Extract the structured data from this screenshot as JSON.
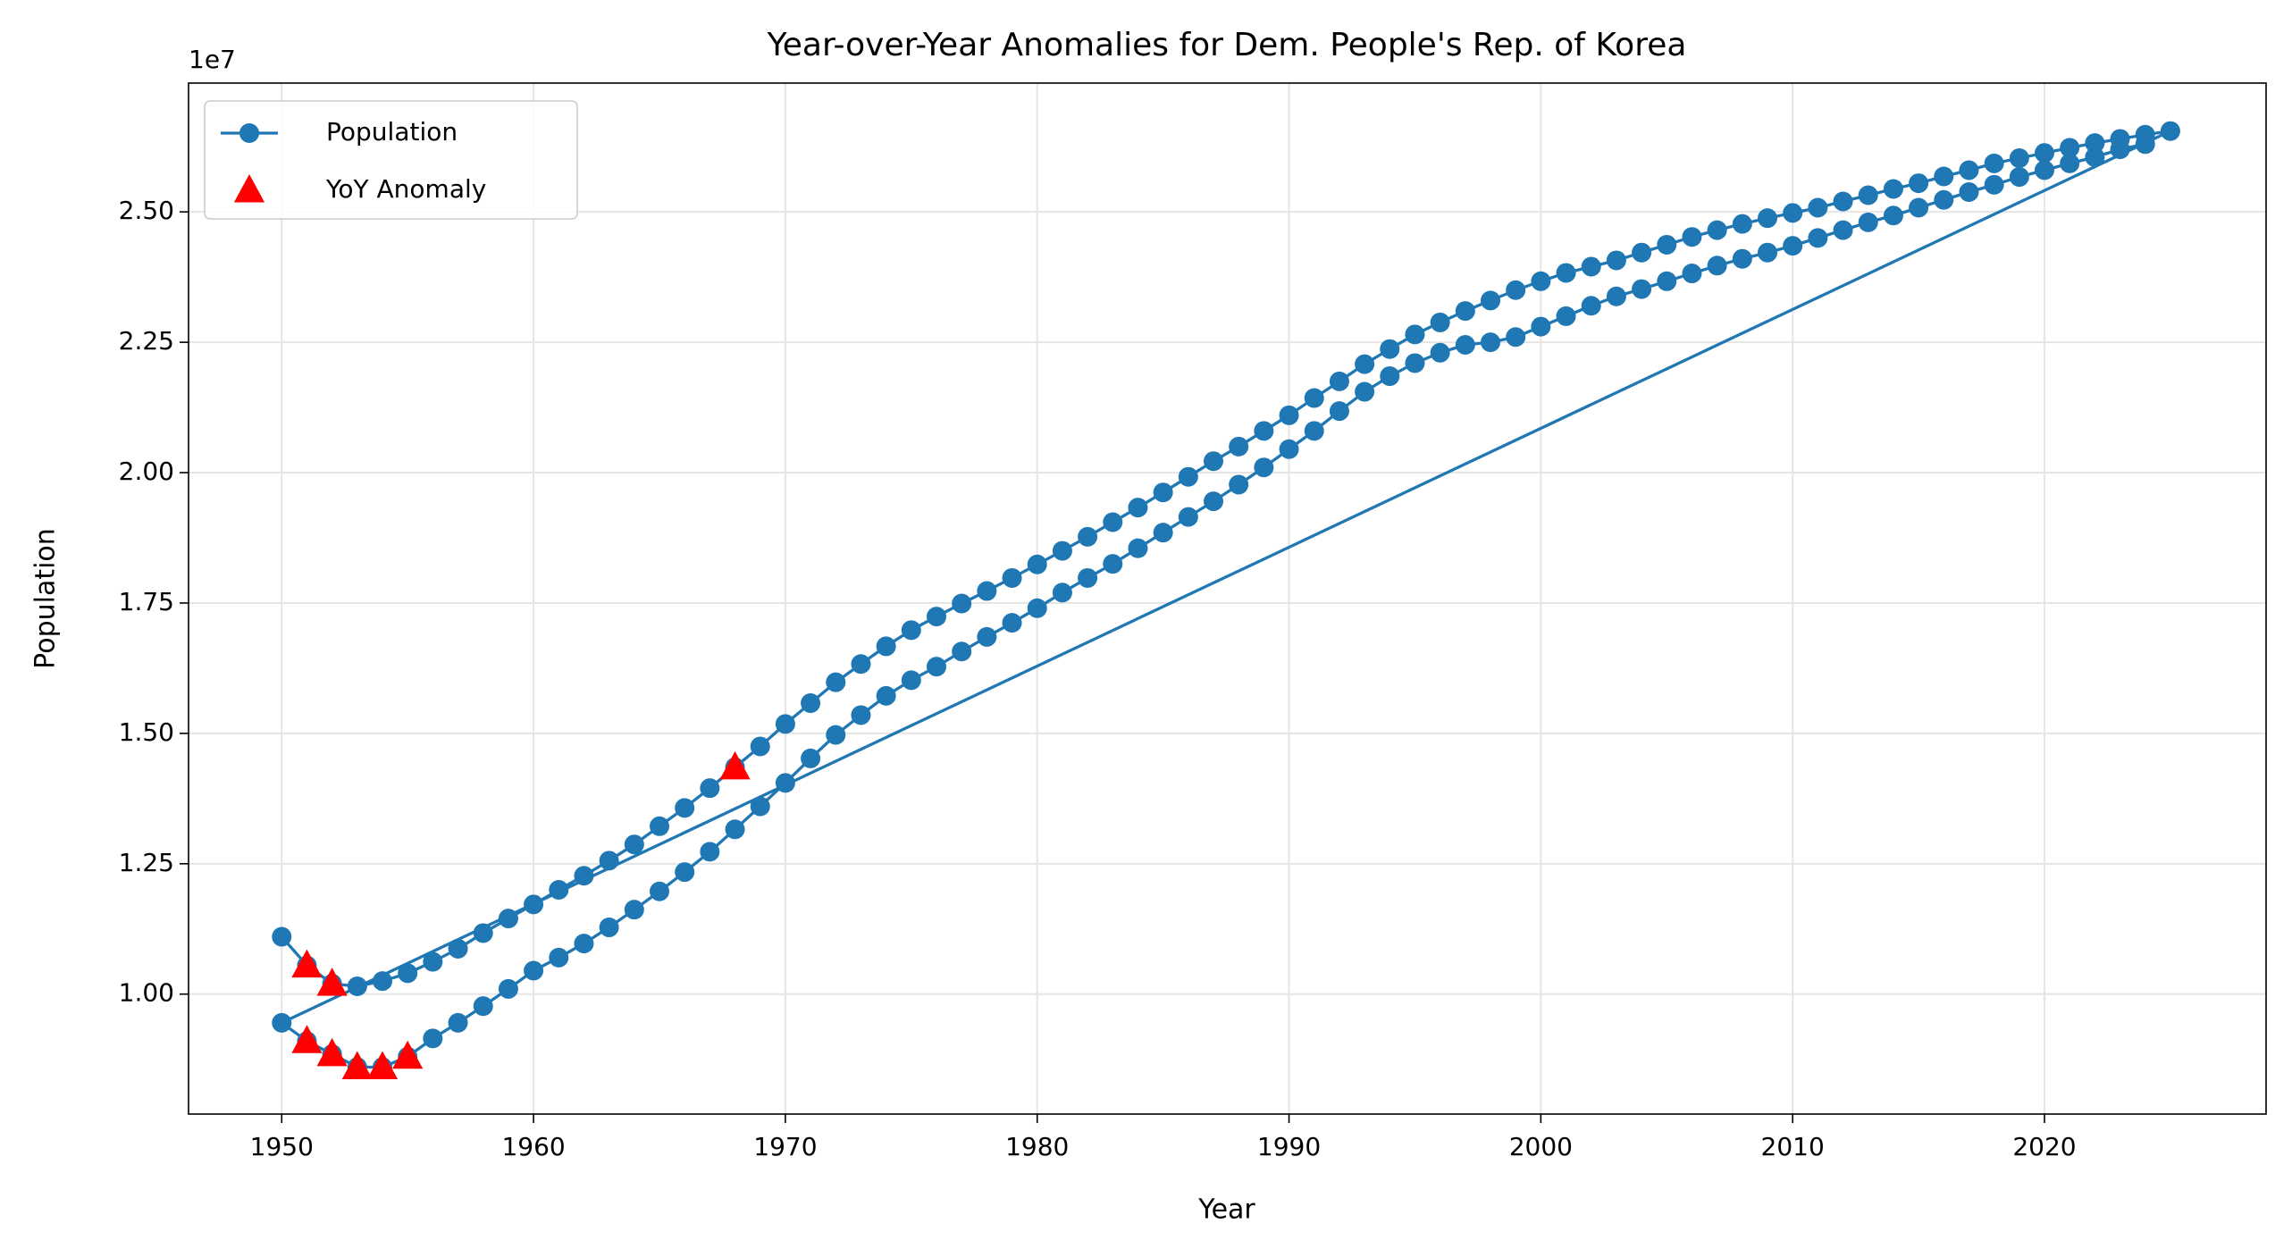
{
  "chart_data": {
    "type": "line",
    "title": "Year-over-Year Anomalies for Dem. People's Rep. of Korea",
    "x_label": "Year",
    "y_label": "Population",
    "y_offset_label": "1e7",
    "xlim": [
      1946.3,
      2028.8
    ],
    "ylim": [
      7700000,
      27470000
    ],
    "xticks": [
      1950,
      1960,
      1970,
      1980,
      1990,
      2000,
      2010,
      2020
    ],
    "yticks": [
      {
        "value": 10000000,
        "label": "1.00"
      },
      {
        "value": 12500000,
        "label": "1.25"
      },
      {
        "value": 15000000,
        "label": "1.50"
      },
      {
        "value": 17500000,
        "label": "1.75"
      },
      {
        "value": 20000000,
        "label": "2.00"
      },
      {
        "value": 22500000,
        "label": "2.25"
      },
      {
        "value": 25000000,
        "label": "2.50"
      }
    ],
    "grid": true,
    "legend": "upper left",
    "x": [
      1950,
      1951,
      1952,
      1953,
      1954,
      1955,
      1956,
      1957,
      1958,
      1959,
      1960,
      1961,
      1962,
      1963,
      1964,
      1965,
      1966,
      1967,
      1968,
      1969,
      1970,
      1971,
      1972,
      1973,
      1974,
      1975,
      1976,
      1977,
      1978,
      1979,
      1980,
      1981,
      1982,
      1983,
      1984,
      1985,
      1986,
      1987,
      1988,
      1989,
      1990,
      1991,
      1992,
      1993,
      1994,
      1995,
      1996,
      1997,
      1998,
      1999,
      2000,
      2001,
      2002,
      2003,
      2004,
      2005,
      2006,
      2007,
      2008,
      2009,
      2010,
      2011,
      2012,
      2013,
      2014,
      2015,
      2016,
      2017,
      2018,
      2019,
      2020,
      2021,
      2022,
      2023,
      2024,
      2025,
      1950,
      1951,
      1952,
      1953,
      1954,
      1955,
      1956,
      1957,
      1958,
      1959,
      1960,
      1961,
      1962,
      1963,
      1964,
      1965,
      1966,
      1967,
      1968,
      1969,
      1970,
      1971,
      1972,
      1973,
      1974,
      1975,
      1976,
      1977,
      1978,
      1979,
      1980,
      1981,
      1982,
      1983,
      1984,
      1985,
      1986,
      1987,
      1988,
      1989,
      1990,
      1991,
      1992,
      1993,
      1994,
      1995,
      1996,
      1997,
      1998,
      1999,
      2000,
      2001,
      2002,
      2003,
      2004,
      2005,
      2006,
      2007,
      2008,
      2009,
      2010,
      2011,
      2012,
      2013,
      2014,
      2015,
      2016,
      2017,
      2018,
      2019,
      2020,
      2021,
      2022,
      2023,
      2024
    ],
    "series": [
      {
        "name": "Population",
        "color": "#1f77b4",
        "values": [
          11100000,
          10550000,
          10200000,
          10150000,
          10250000,
          10400000,
          10620000,
          10870000,
          11170000,
          11450000,
          11720000,
          12000000,
          12270000,
          12560000,
          12870000,
          13220000,
          13570000,
          13950000,
          14350000,
          14750000,
          15180000,
          15580000,
          15980000,
          16330000,
          16670000,
          16980000,
          17240000,
          17490000,
          17730000,
          17980000,
          18240000,
          18500000,
          18770000,
          19050000,
          19330000,
          19620000,
          19920000,
          20220000,
          20500000,
          20800000,
          21100000,
          21430000,
          21750000,
          22080000,
          22370000,
          22650000,
          22880000,
          23100000,
          23300000,
          23500000,
          23670000,
          23830000,
          23950000,
          24070000,
          24220000,
          24370000,
          24520000,
          24650000,
          24770000,
          24880000,
          24980000,
          25080000,
          25200000,
          25320000,
          25440000,
          25550000,
          25680000,
          25800000,
          25930000,
          26030000,
          26130000,
          26230000,
          26320000,
          26400000,
          26480000,
          26550000,
          9450000,
          9100000,
          8850000,
          8600000,
          8600000,
          8800000,
          9150000,
          9450000,
          9770000,
          10100000,
          10450000,
          10700000,
          10970000,
          11280000,
          11620000,
          11970000,
          12340000,
          12730000,
          13160000,
          13600000,
          14050000,
          14520000,
          14970000,
          15350000,
          15720000,
          16020000,
          16280000,
          16570000,
          16850000,
          17120000,
          17400000,
          17700000,
          17980000,
          18250000,
          18550000,
          18850000,
          19150000,
          19450000,
          19770000,
          20100000,
          20450000,
          20800000,
          21180000,
          21550000,
          21850000,
          22100000,
          22300000,
          22450000,
          22500000,
          22600000,
          22800000,
          23000000,
          23200000,
          23380000,
          23520000,
          23670000,
          23820000,
          23970000,
          24100000,
          24220000,
          24350000,
          24500000,
          24650000,
          24800000,
          24930000,
          25080000,
          25230000,
          25380000,
          25520000,
          25670000,
          25800000,
          25930000,
          26050000,
          26200000,
          26300000
        ]
      },
      {
        "name": "YoY Anomaly",
        "color": "#ff0000",
        "type": "scatter",
        "x": [
          1951,
          1952,
          1951,
          1952,
          1953,
          1954,
          1955,
          1968
        ],
        "values": [
          10550000,
          10200000,
          9100000,
          8850000,
          8600000,
          8600000,
          8800000,
          14350000
        ]
      }
    ]
  }
}
